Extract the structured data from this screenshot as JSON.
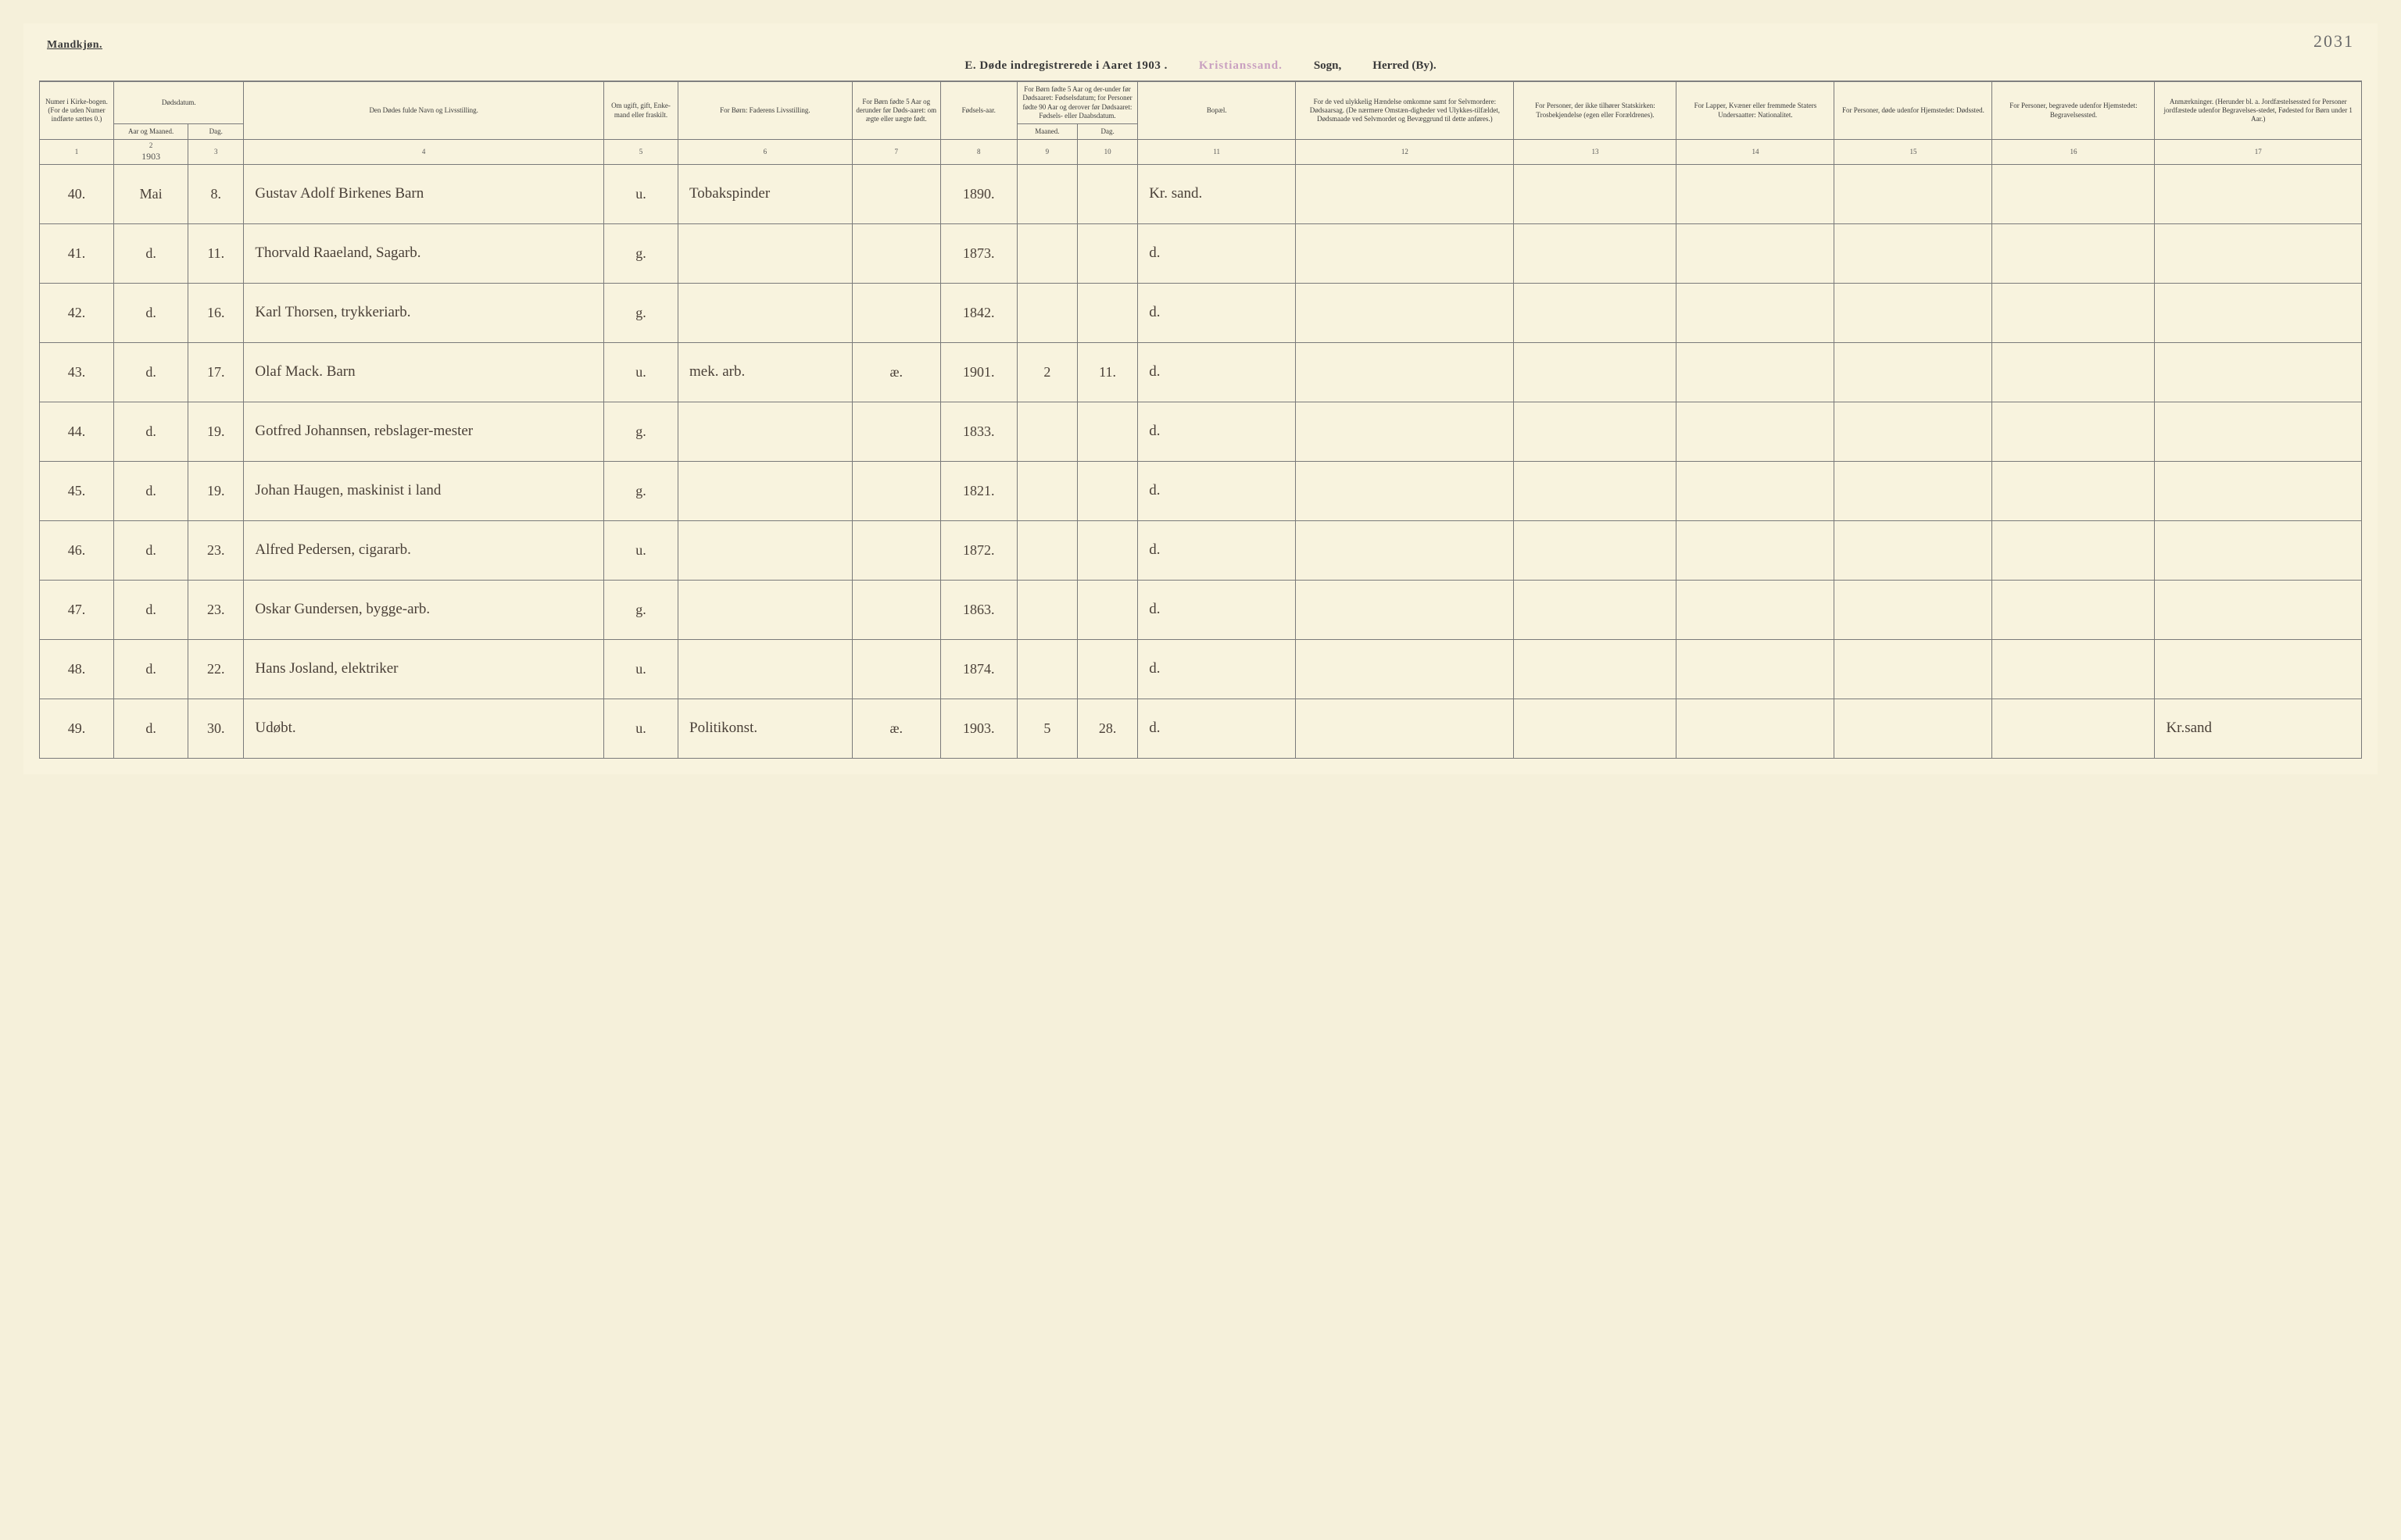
{
  "header": {
    "gender": "Mandkjøn.",
    "page_number": "2031",
    "title_prefix": "E.  Døde indregistrerede i Aaret 190",
    "title_year_suffix": "3 .",
    "sogn_printed": "Kristianssand.",
    "sogn_label": "Sogn,",
    "herred_label": "Herred (By)."
  },
  "columns": {
    "c1": "Numer i Kirke-bogen. (For de uden Numer indførte sættes 0.)",
    "c2_top": "Dødsdatum.",
    "c2a": "Aar og Maaned.",
    "c2b": "Dag.",
    "c4": "Den Dødes fulde Navn og Livsstilling.",
    "c5": "Om ugift, gift, Enke-mand eller fraskilt.",
    "c6": "For Børn: Faderens Livsstilling.",
    "c7": "For Børn fødte 5 Aar og derunder før Døds-aaret: om ægte eller uægte født.",
    "c8": "Fødsels-aar.",
    "c9_top": "For Børn fødte 5 Aar og der-under før Dødsaaret: Fødselsdatum; for Personer fødte 90 Aar og derover før Dødsaaret: Fødsels- eller Daabsdatum.",
    "c9a": "Maaned.",
    "c9b": "Dag.",
    "c11": "Bopæl.",
    "c12": "For de ved ulykkelig Hændelse omkomne samt for Selvmordere: Dødsaarsag. (De nærmere Omstæn-digheder ved Ulykkes-tilfældet, Dødsmaade ved Selvmordet og Bevæggrund til dette anføres.)",
    "c13": "For Personer, der ikke tilhører Statskirken: Trosbekjendelse (egen eller Forældrenes).",
    "c14": "For Lapper, Kvæner eller fremmede Staters Undersaatter: Nationalitet.",
    "c15": "For Personer, døde udenfor Hjemstedet: Dødssted.",
    "c16": "For Personer, begravede udenfor Hjemstedet: Begravelsessted.",
    "c17": "Anmærkninger. (Herunder bl. a. Jordfæstelsessted for Personer jordfæstede udenfor Begravelses-stedet, Fødested for Børn under 1 Aar.)"
  },
  "colnums": [
    "1",
    "2",
    "3",
    "4",
    "5",
    "6",
    "7",
    "8",
    "9",
    "10",
    "11",
    "12",
    "13",
    "14",
    "15",
    "16",
    "17"
  ],
  "year_script": "1903",
  "rows": [
    {
      "num": "40.",
      "mon": "Mai",
      "day": "8.",
      "name": "Gustav Adolf Birkenes Barn",
      "stat": "u.",
      "father": "Tobakspinder",
      "legit": "",
      "byear": "1890.",
      "bm": "",
      "bd": "",
      "res": "Kr. sand.",
      "c12": "",
      "c13": "",
      "c14": "",
      "c15": "",
      "c16": "",
      "c17": ""
    },
    {
      "num": "41.",
      "mon": "d.",
      "day": "11.",
      "name": "Thorvald Raaeland, Sagarb.",
      "stat": "g.",
      "father": "",
      "legit": "",
      "byear": "1873.",
      "bm": "",
      "bd": "",
      "res": "d.",
      "c12": "",
      "c13": "",
      "c14": "",
      "c15": "",
      "c16": "",
      "c17": ""
    },
    {
      "num": "42.",
      "mon": "d.",
      "day": "16.",
      "name": "Karl Thorsen, trykkeriarb.",
      "stat": "g.",
      "father": "",
      "legit": "",
      "byear": "1842.",
      "bm": "",
      "bd": "",
      "res": "d.",
      "c12": "",
      "c13": "",
      "c14": "",
      "c15": "",
      "c16": "",
      "c17": ""
    },
    {
      "num": "43.",
      "mon": "d.",
      "day": "17.",
      "name": "Olaf Mack. Barn",
      "stat": "u.",
      "father": "mek. arb.",
      "legit": "æ.",
      "byear": "1901.",
      "bm": "2",
      "bd": "11.",
      "res": "d.",
      "c12": "",
      "c13": "",
      "c14": "",
      "c15": "",
      "c16": "",
      "c17": ""
    },
    {
      "num": "44.",
      "mon": "d.",
      "day": "19.",
      "name": "Gotfred Johannsen, rebslager-mester",
      "stat": "g.",
      "father": "",
      "legit": "",
      "byear": "1833.",
      "bm": "",
      "bd": "",
      "res": "d.",
      "c12": "",
      "c13": "",
      "c14": "",
      "c15": "",
      "c16": "",
      "c17": ""
    },
    {
      "num": "45.",
      "mon": "d.",
      "day": "19.",
      "name": "Johan Haugen, maskinist i land",
      "stat": "g.",
      "father": "",
      "legit": "",
      "byear": "1821.",
      "bm": "",
      "bd": "",
      "res": "d.",
      "c12": "",
      "c13": "",
      "c14": "",
      "c15": "",
      "c16": "",
      "c17": ""
    },
    {
      "num": "46.",
      "mon": "d.",
      "day": "23.",
      "name": "Alfred Pedersen, cigararb.",
      "stat": "u.",
      "father": "",
      "legit": "",
      "byear": "1872.",
      "bm": "",
      "bd": "",
      "res": "d.",
      "c12": "",
      "c13": "",
      "c14": "",
      "c15": "",
      "c16": "",
      "c17": ""
    },
    {
      "num": "47.",
      "mon": "d.",
      "day": "23.",
      "name": "Oskar Gundersen, bygge-arb.",
      "stat": "g.",
      "father": "",
      "legit": "",
      "byear": "1863.",
      "bm": "",
      "bd": "",
      "res": "d.",
      "c12": "",
      "c13": "",
      "c14": "",
      "c15": "",
      "c16": "",
      "c17": ""
    },
    {
      "num": "48.",
      "mon": "d.",
      "day": "22.",
      "name": "Hans Josland, elektriker",
      "stat": "u.",
      "father": "",
      "legit": "",
      "byear": "1874.",
      "bm": "",
      "bd": "",
      "res": "d.",
      "c12": "",
      "c13": "",
      "c14": "",
      "c15": "",
      "c16": "",
      "c17": ""
    },
    {
      "num": "49.",
      "mon": "d.",
      "day": "30.",
      "name": "Udøbt.",
      "stat": "u.",
      "father": "Politikonst.",
      "legit": "æ.",
      "byear": "1903.",
      "bm": "5",
      "bd": "28.",
      "res": "d.",
      "c12": "",
      "c13": "",
      "c14": "",
      "c15": "",
      "c16": "",
      "c17": "Kr.sand"
    }
  ],
  "style": {
    "background": "#f8f3de",
    "border_color": "#7a7a7a",
    "header_fontsize": 9,
    "body_fontsize": 20,
    "script_color": "#4a4038",
    "sogn_color": "#c9a0c0"
  }
}
